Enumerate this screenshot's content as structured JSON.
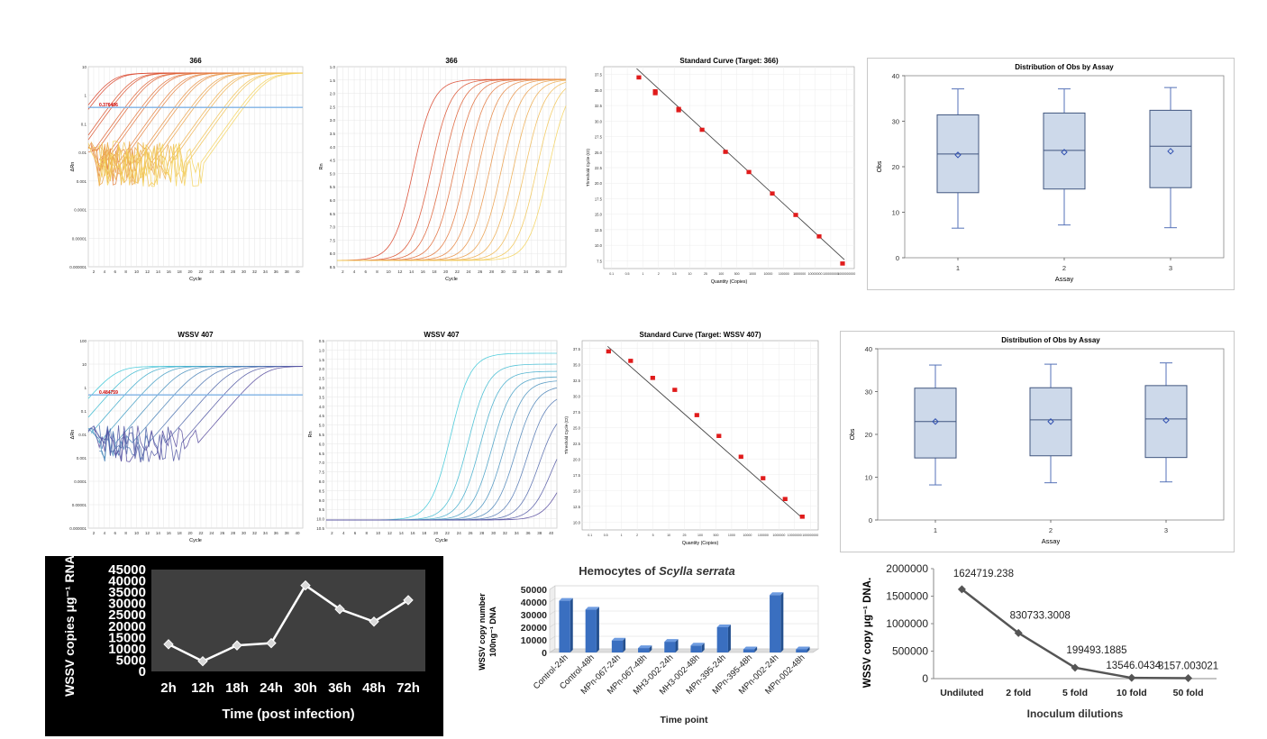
{
  "chart_data": [
    {
      "id": "amp_log_366",
      "type": "line",
      "title": "366",
      "xlabel": "Cycle",
      "ylabel": "ΔRn",
      "yscale": "log",
      "ytick_labels": [
        "10",
        "1",
        "0.1",
        "0.01",
        "0.001",
        "0.0001",
        "0.00001",
        "0.000001"
      ],
      "xtick_labels": [
        "2",
        "4",
        "6",
        "8",
        "10",
        "12",
        "14",
        "16",
        "18",
        "20",
        "22",
        "24",
        "26",
        "28",
        "30",
        "32",
        "34",
        "36",
        "38",
        "40"
      ],
      "xlim": [
        1,
        40
      ],
      "threshold": {
        "label": "0.376406",
        "value": 0.376406
      },
      "plateau": 6,
      "series_midpoints": [
        5,
        9,
        12,
        15,
        18,
        21,
        24,
        27,
        30,
        33
      ],
      "colors": [
        "#d9452b",
        "#f4d35e"
      ]
    },
    {
      "id": "amp_lin_366",
      "type": "line",
      "title": "366",
      "xlabel": "Cycle",
      "ylabel": "Rn",
      "ytick_labels": [
        "1.0",
        "1.5",
        "2.0",
        "2.5",
        "3.0",
        "3.5",
        "4.0",
        "4.5",
        "5.0",
        "5.5",
        "6.0",
        "6.5",
        "7.0",
        "7.5",
        "8.0",
        "8.5"
      ],
      "xtick_labels": [
        "2",
        "4",
        "6",
        "8",
        "10",
        "12",
        "14",
        "16",
        "18",
        "20",
        "22",
        "24",
        "26",
        "28",
        "30",
        "32",
        "34",
        "36",
        "38",
        "40"
      ],
      "ylim": [
        0.8,
        8.7
      ],
      "xlim": [
        1,
        40
      ],
      "baseline": 1.05,
      "plateau": 8.2,
      "series_midpoints": [
        14,
        17,
        19,
        21,
        23,
        25,
        27,
        29,
        31,
        33,
        35,
        37
      ],
      "colors": [
        "#d9452b",
        "#f4d35e"
      ]
    },
    {
      "id": "std_366",
      "type": "scatter",
      "title": "Standard Curve (Target: 366)",
      "xlabel": "Quantity (Copies)",
      "ylabel": "Threshold Cycle (Ct)",
      "xscale": "log",
      "ytick_labels": [
        "37.5",
        "35.0",
        "32.5",
        "30.0",
        "27.5",
        "25.0",
        "22.5",
        "20.0",
        "17.5",
        "15.0",
        "12.5",
        "10.0",
        "7.5"
      ],
      "xtick_labels": [
        "0.1",
        "0.5",
        "1",
        "2",
        "3.5",
        "10",
        "25",
        "100",
        "500",
        "1000",
        "10000",
        "100000",
        "1000000",
        "10000000",
        "100000000",
        "1000000000"
      ],
      "ylim": [
        6.5,
        38.5
      ],
      "points": [
        [
          1,
          36.8
        ],
        [
          5,
          34.6
        ],
        [
          5,
          34.3
        ],
        [
          50,
          31.8
        ],
        [
          50,
          31.6
        ],
        [
          500,
          28.5
        ],
        [
          5000,
          25.0
        ],
        [
          50000,
          21.8
        ],
        [
          500000,
          18.4
        ],
        [
          5000000,
          15.0
        ],
        [
          50000000,
          11.6
        ],
        [
          500000000,
          7.3
        ]
      ],
      "fit": [
        [
          0.8,
          38.2
        ],
        [
          600000000,
          7.9
        ]
      ]
    },
    {
      "id": "box_1",
      "type": "box",
      "title": "Distribution of Obs by Assay",
      "xlabel": "Assay",
      "ylabel": "Obs",
      "categories": [
        "1",
        "2",
        "3"
      ],
      "ylim": [
        0,
        40
      ],
      "yticks": [
        0,
        10,
        20,
        30,
        40
      ],
      "boxes": [
        {
          "min": 6.5,
          "q1": 14.3,
          "median": 22.8,
          "q3": 31.4,
          "max": 37.1,
          "mean": 22.6
        },
        {
          "min": 7.2,
          "q1": 15.1,
          "median": 23.6,
          "q3": 31.8,
          "max": 37.1,
          "mean": 23.2
        },
        {
          "min": 6.6,
          "q1": 15.4,
          "median": 24.5,
          "q3": 32.4,
          "max": 37.4,
          "mean": 23.4
        }
      ]
    },
    {
      "id": "amp_log_wssv",
      "type": "line",
      "title": "WSSV 407",
      "xlabel": "Cycle",
      "ylabel": "ΔRn",
      "yscale": "log",
      "ytick_labels": [
        "100",
        "10",
        "1",
        "0.1",
        "0.01",
        "0.001",
        "0.0001",
        "0.00001",
        "0.000001"
      ],
      "xtick_labels": [
        "2",
        "4",
        "6",
        "8",
        "10",
        "12",
        "14",
        "16",
        "18",
        "20",
        "22",
        "24",
        "26",
        "28",
        "30",
        "32",
        "34",
        "36",
        "38",
        "40"
      ],
      "xlim": [
        1,
        40
      ],
      "threshold": {
        "label": "0.484759",
        "value": 0.484759
      },
      "plateau": 8,
      "series_midpoints": [
        6,
        9,
        12,
        15,
        18,
        21,
        24,
        27,
        30,
        33
      ],
      "colors": [
        "#3ec8d8",
        "#5a4fa0"
      ]
    },
    {
      "id": "amp_lin_wssv",
      "type": "line",
      "title": "WSSV 407",
      "xlabel": "Cycle",
      "ylabel": "Rn",
      "ytick_labels": [
        "0.5",
        "1.0",
        "1.5",
        "2.0",
        "2.5",
        "3.0",
        "3.5",
        "4.0",
        "4.5",
        "5.0",
        "5.5",
        "6.0",
        "6.5",
        "7.0",
        "7.5",
        "8.0",
        "8.5",
        "9.0",
        "9.5",
        "10.0",
        "10.5"
      ],
      "xtick_labels": [
        "2",
        "4",
        "6",
        "8",
        "10",
        "12",
        "14",
        "16",
        "18",
        "20",
        "22",
        "24",
        "26",
        "28",
        "30",
        "32",
        "34",
        "36",
        "38",
        "40"
      ],
      "ylim": [
        0.3,
        10.7
      ],
      "xlim": [
        1,
        40
      ],
      "baseline": 0.75,
      "series_midpoints": [
        22,
        25,
        27,
        29,
        31,
        33,
        35,
        37,
        39,
        41
      ],
      "plateaus": [
        10.0,
        9.4,
        9.0,
        8.7,
        8.5,
        8.2,
        7.8,
        7.0,
        6.0,
        5.0
      ],
      "colors": [
        "#3ec8d8",
        "#5a4fa0"
      ]
    },
    {
      "id": "std_wssv",
      "type": "scatter",
      "title": "Standard Curve (Target: WSSV 407)",
      "xlabel": "Quantity (Copies)",
      "ylabel": "Threshold Cycle (Ct)",
      "xscale": "log",
      "ytick_labels": [
        "37.5",
        "35.0",
        "32.5",
        "30.0",
        "27.5",
        "25.0",
        "22.5",
        "20.0",
        "17.5",
        "15.0",
        "12.5",
        "10.0"
      ],
      "xtick_labels": [
        "0.1",
        "0.5",
        "1",
        "2",
        "5",
        "10",
        "25",
        "100",
        "500",
        "1000",
        "10000",
        "100000",
        "1000000",
        "10000000",
        "100000000"
      ],
      "ylim": [
        8.5,
        38.5
      ],
      "points": [
        [
          0.5,
          36.8
        ],
        [
          5,
          35.3
        ],
        [
          50,
          32.6
        ],
        [
          500,
          30.7
        ],
        [
          5000,
          26.7
        ],
        [
          50000,
          23.4
        ],
        [
          500000,
          20.1
        ],
        [
          5000000,
          16.7
        ],
        [
          50000000,
          13.4
        ],
        [
          300000000,
          10.6
        ]
      ],
      "fit": [
        [
          0.45,
          37.6
        ],
        [
          300000000,
          10.4
        ]
      ]
    },
    {
      "id": "box_2",
      "type": "box",
      "title": "Distribution of Obs by Assay",
      "xlabel": "Assay",
      "ylabel": "Obs",
      "categories": [
        "1",
        "2",
        "3"
      ],
      "ylim": [
        0,
        40
      ],
      "yticks": [
        0,
        10,
        20,
        30,
        40
      ],
      "boxes": [
        {
          "min": 8.2,
          "q1": 14.5,
          "median": 23.0,
          "q3": 30.8,
          "max": 36.2,
          "mean": 23.0
        },
        {
          "min": 8.7,
          "q1": 15.0,
          "median": 23.4,
          "q3": 30.9,
          "max": 36.4,
          "mean": 23.0
        },
        {
          "min": 8.9,
          "q1": 14.6,
          "median": 23.6,
          "q3": 31.4,
          "max": 36.7,
          "mean": 23.3
        }
      ]
    },
    {
      "id": "time_course",
      "type": "line",
      "title": "",
      "xlabel": "Time (post infection)",
      "ylabel": "WSSV  copies μg⁻¹ RNA",
      "categories": [
        "2h",
        "12h",
        "18h",
        "24h",
        "30h",
        "36h",
        "48h",
        "72h"
      ],
      "values": [
        12000,
        4500,
        11500,
        12500,
        38000,
        27500,
        22000,
        31500
      ],
      "ylim": [
        0,
        45000
      ],
      "yticks": [
        0,
        5000,
        10000,
        15000,
        20000,
        25000,
        30000,
        35000,
        40000,
        45000
      ],
      "background": "#000000",
      "line_color": "#ffffff"
    },
    {
      "id": "hemocytes",
      "type": "bar",
      "title": "Hemocytes of Scylla serrata",
      "title_plain": "Hemocytes of ",
      "title_italic": "Scylla serrata",
      "xlabel": "Time point",
      "ylabel": "WSSV copy number 100ng⁻¹ DNA",
      "ylabel_line1": "WSSV copy number",
      "ylabel_line2": "100ng⁻¹ DNA",
      "categories": [
        "Control-24h",
        "Control-48h",
        "MPn-067-24h",
        "MPn-067-48h",
        "MH3-002-24h",
        "MH3-002-48h",
        "MPn-395-24h",
        "MPn-395-48h",
        "MPn-002-24h",
        "MPn-002-48h"
      ],
      "values": [
        41000,
        34000,
        9500,
        3500,
        8500,
        5500,
        20000,
        2500,
        45500,
        2500
      ],
      "ylim": [
        0,
        50000
      ],
      "yticks": [
        0,
        10000,
        20000,
        30000,
        40000,
        50000
      ],
      "bar_color": "#3a6fc0"
    },
    {
      "id": "inoculum",
      "type": "line",
      "title": "",
      "xlabel": "Inoculum dilutions",
      "ylabel": "WSSV copy μg⁻¹ DNA.",
      "categories": [
        "Undiluted",
        "2 fold",
        "5 fold",
        "10 fold",
        "50 fold"
      ],
      "values": [
        1624719.238,
        830733.3008,
        199493.1885,
        13546.0434,
        8157.003021
      ],
      "data_labels": [
        "1624719.238",
        "830733.3008",
        "199493.1885",
        "13546.0434",
        "8157.003021"
      ],
      "ylim": [
        0,
        2000000
      ],
      "yticks": [
        0,
        500000,
        1000000,
        1500000,
        2000000
      ],
      "line_color": "#555555"
    }
  ]
}
